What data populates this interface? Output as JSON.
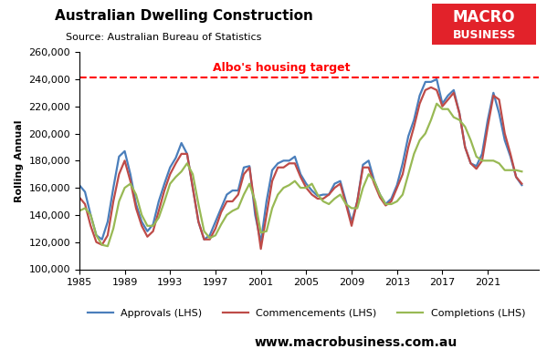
{
  "chart_data": {
    "type": "line",
    "title": "Australian Dwelling Construction",
    "subtitle": "Source: Australian Bureau of Statistics",
    "y_label": "Rolling Annual",
    "logo": [
      "MACRO",
      "BUSINESS"
    ],
    "logo_color": "#e2222a",
    "footer": "www.macrobusiness.com.au",
    "x": [
      1985.0,
      1985.5,
      1986.0,
      1986.5,
      1987.0,
      1987.5,
      1988.0,
      1988.5,
      1989.0,
      1989.5,
      1990.0,
      1990.5,
      1991.0,
      1991.5,
      1992.0,
      1992.5,
      1993.0,
      1993.5,
      1994.0,
      1994.5,
      1995.0,
      1995.5,
      1996.0,
      1996.5,
      1997.0,
      1997.5,
      1998.0,
      1998.5,
      1999.0,
      1999.5,
      2000.0,
      2000.5,
      2001.0,
      2001.5,
      2002.0,
      2002.5,
      2003.0,
      2003.5,
      2004.0,
      2004.5,
      2005.0,
      2005.5,
      2006.0,
      2006.5,
      2007.0,
      2007.5,
      2008.0,
      2008.5,
      2009.0,
      2009.5,
      2010.0,
      2010.5,
      2011.0,
      2011.5,
      2012.0,
      2012.5,
      2013.0,
      2013.5,
      2014.0,
      2014.5,
      2015.0,
      2015.5,
      2016.0,
      2016.5,
      2017.0,
      2017.5,
      2018.0,
      2018.5,
      2019.0,
      2019.5,
      2020.0,
      2020.5,
      2021.0,
      2021.5,
      2022.0,
      2022.5,
      2023.0,
      2023.5,
      2024.0
    ],
    "series": [
      {
        "name": "Approvals (LHS)",
        "color": "#4a7ebb",
        "values": [
          162000,
          157000,
          140000,
          125000,
          122000,
          135000,
          160000,
          183000,
          187000,
          170000,
          148000,
          135000,
          128000,
          133000,
          150000,
          163000,
          175000,
          182000,
          193000,
          185000,
          160000,
          135000,
          122000,
          125000,
          135000,
          145000,
          155000,
          158000,
          158000,
          175000,
          176000,
          140000,
          120000,
          150000,
          173000,
          178000,
          180000,
          180000,
          183000,
          170000,
          163000,
          158000,
          154000,
          155000,
          155000,
          163000,
          165000,
          150000,
          135000,
          150000,
          177000,
          180000,
          165000,
          155000,
          148000,
          152000,
          162000,
          178000,
          198000,
          210000,
          228000,
          238000,
          238000,
          240000,
          222000,
          228000,
          232000,
          215000,
          190000,
          178000,
          176000,
          185000,
          210000,
          230000,
          215000,
          195000,
          183000,
          168000,
          162000
        ]
      },
      {
        "name": "Commencements (LHS)",
        "color": "#be4b48",
        "values": [
          153000,
          148000,
          132000,
          120000,
          118000,
          125000,
          150000,
          170000,
          180000,
          165000,
          145000,
          132000,
          124000,
          128000,
          143000,
          158000,
          170000,
          178000,
          185000,
          185000,
          160000,
          135000,
          122000,
          122000,
          130000,
          142000,
          150000,
          150000,
          155000,
          170000,
          175000,
          145000,
          115000,
          140000,
          165000,
          175000,
          175000,
          178000,
          178000,
          168000,
          160000,
          155000,
          152000,
          152000,
          155000,
          160000,
          163000,
          148000,
          132000,
          150000,
          175000,
          175000,
          163000,
          153000,
          147000,
          150000,
          160000,
          170000,
          190000,
          205000,
          222000,
          232000,
          234000,
          232000,
          220000,
          225000,
          230000,
          215000,
          190000,
          178000,
          174000,
          180000,
          205000,
          228000,
          225000,
          200000,
          185000,
          168000,
          163000
        ]
      },
      {
        "name": "Completions (LHS)",
        "color": "#98b954",
        "values": [
          143000,
          145000,
          140000,
          125000,
          118000,
          117000,
          130000,
          150000,
          160000,
          163000,
          155000,
          140000,
          132000,
          132000,
          138000,
          150000,
          163000,
          168000,
          172000,
          178000,
          170000,
          148000,
          128000,
          123000,
          125000,
          133000,
          140000,
          143000,
          145000,
          155000,
          163000,
          150000,
          127000,
          128000,
          145000,
          155000,
          160000,
          162000,
          165000,
          160000,
          160000,
          163000,
          155000,
          150000,
          148000,
          152000,
          155000,
          148000,
          145000,
          145000,
          160000,
          170000,
          165000,
          155000,
          148000,
          148000,
          150000,
          155000,
          170000,
          185000,
          195000,
          200000,
          210000,
          222000,
          218000,
          218000,
          212000,
          210000,
          205000,
          195000,
          183000,
          180000,
          180000,
          180000,
          178000,
          173000,
          173000,
          173000,
          172000
        ]
      }
    ],
    "reference_line": {
      "label": "Albo's housing target",
      "value": 241000,
      "color": "#ff0000",
      "line_style": "dashed"
    },
    "xlim": [
      1985,
      2025.5
    ],
    "xticks": [
      1985,
      1989,
      1993,
      1997,
      2001,
      2005,
      2009,
      2013,
      2017,
      2021
    ],
    "ylim": [
      100000,
      260000
    ],
    "yticks": [
      {
        "value": 100000,
        "label": "100,000"
      },
      {
        "value": 120000,
        "label": "120,000"
      },
      {
        "value": 140000,
        "label": "140,000"
      },
      {
        "value": 160000,
        "label": "160,000"
      },
      {
        "value": 180000,
        "label": "180,000"
      },
      {
        "value": 200000,
        "label": "200,000"
      },
      {
        "value": 220000,
        "label": "220,000"
      },
      {
        "value": 240000,
        "label": "240,000"
      },
      {
        "value": 260000,
        "label": "260,000"
      }
    ],
    "grid": false,
    "legend": "lower center"
  }
}
